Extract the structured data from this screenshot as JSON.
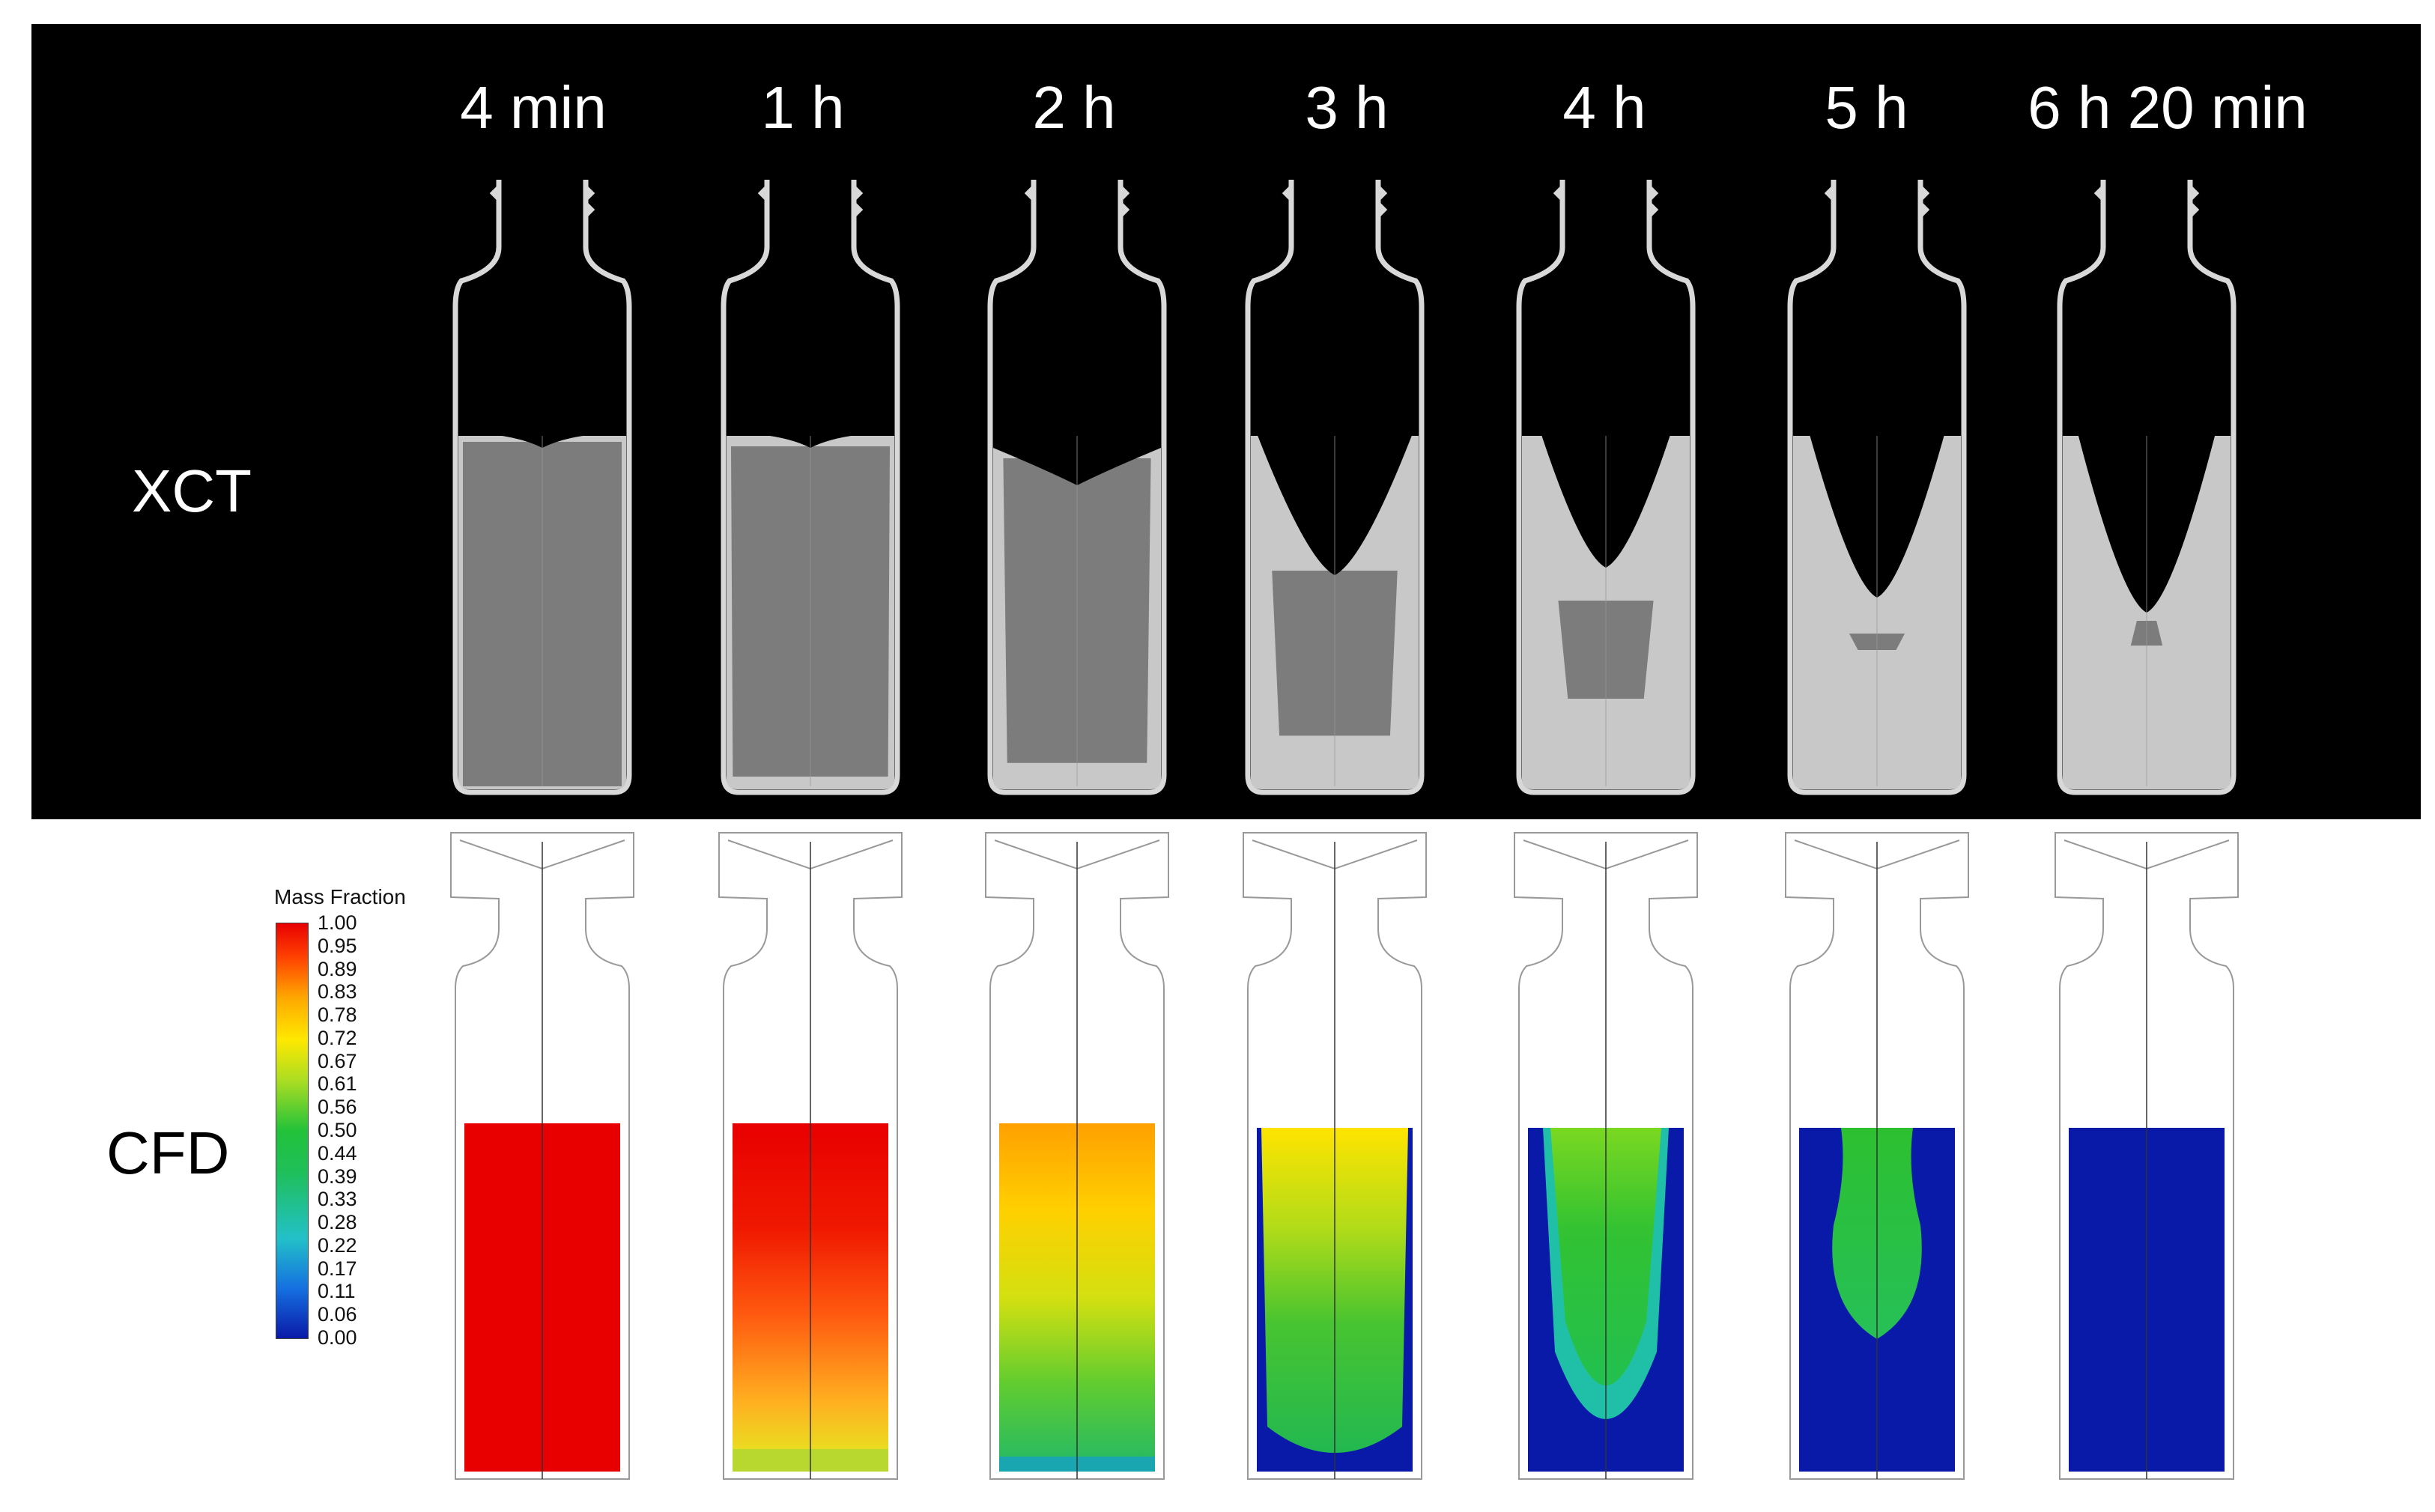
{
  "time_labels": [
    "4 min",
    "1 h",
    "2 h",
    "3 h",
    "4 h",
    "5 h",
    "6 h 20 min"
  ],
  "row_labels": {
    "xct": "XCT",
    "cfd": "CFD"
  },
  "colorbar": {
    "title": "Mass Fraction",
    "ticks": [
      "1.00",
      "0.95",
      "0.89",
      "0.83",
      "0.78",
      "0.72",
      "0.67",
      "0.61",
      "0.56",
      "0.50",
      "0.44",
      "0.39",
      "0.33",
      "0.28",
      "0.22",
      "0.17",
      "0.11",
      "0.06",
      "0.00"
    ]
  },
  "colors": {
    "xct_background": "#000000",
    "cfd_max": "#e80000",
    "cfd_min": "#0a1aa8"
  },
  "cfd_fill": [
    {
      "time": "4 min",
      "style": "solid-red"
    },
    {
      "time": "1 h",
      "style": "red-orange-yellow-bottom"
    },
    {
      "time": "2 h",
      "style": "orange-yellow-green"
    },
    {
      "time": "3 h",
      "style": "yellow-green-blue-edges"
    },
    {
      "time": "4 h",
      "style": "green-core-blue"
    },
    {
      "time": "5 h",
      "style": "small-green-core-blue"
    },
    {
      "time": "6 h 20 min",
      "style": "solid-blue"
    }
  ]
}
